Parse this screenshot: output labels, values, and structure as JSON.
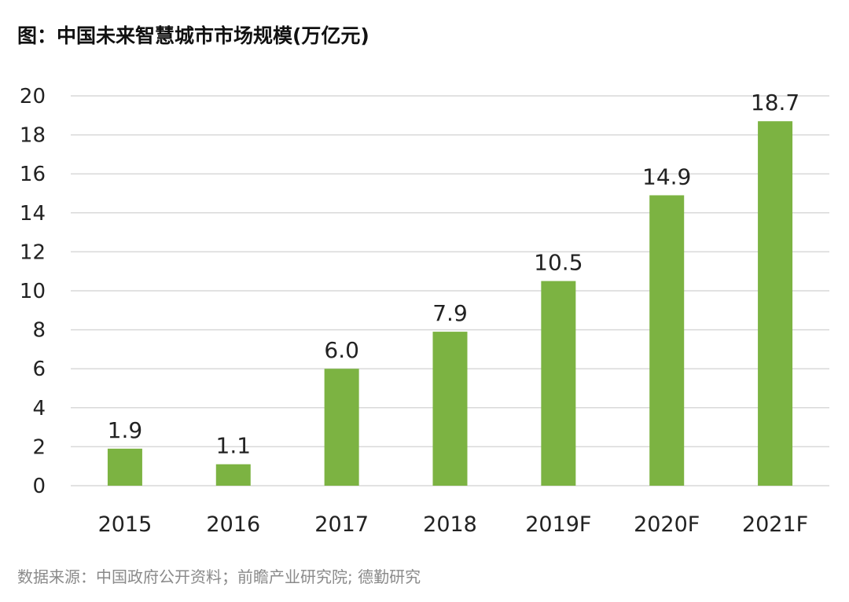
{
  "title": "图：中国未来智慧城市市场规模(万亿元)",
  "source": "数据来源：中国政府公开资料；前瞻产业研究院; 德勤研究",
  "colors": {
    "bar": "#7cb342",
    "grid": "#d9d9d9",
    "text": "#222222"
  },
  "chart_data": {
    "type": "bar",
    "title": "图：中国未来智慧城市市场规模(万亿元)",
    "xlabel": "",
    "ylabel": "",
    "categories": [
      "2015",
      "2016",
      "2017",
      "2018",
      "2019F",
      "2020F",
      "2021F"
    ],
    "values": [
      1.9,
      1.1,
      6.0,
      7.9,
      10.5,
      14.9,
      18.7
    ],
    "value_labels": [
      "1.9",
      "1.1",
      "6.0",
      "7.9",
      "10.5",
      "14.9",
      "18.7"
    ],
    "ylim": [
      0,
      20
    ],
    "yticks": [
      0,
      2,
      4,
      6,
      8,
      10,
      12,
      14,
      16,
      18,
      20
    ],
    "grid": true,
    "legend": "none"
  }
}
